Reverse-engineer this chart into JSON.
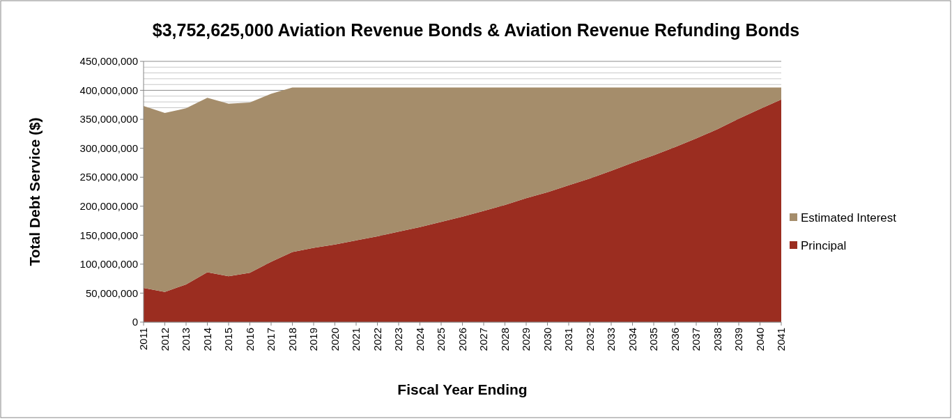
{
  "chart_data": {
    "type": "area",
    "stacked": true,
    "title": "$3,752,625,000 Aviation Revenue Bonds & Aviation Revenue Refunding Bonds",
    "xlabel": "Fiscal Year Ending",
    "ylabel": "Total Debt Service ($)",
    "categories": [
      "2011",
      "2012",
      "2013",
      "2014",
      "2015",
      "2016",
      "2017",
      "2018",
      "2019",
      "2020",
      "2021",
      "2022",
      "2023",
      "2024",
      "2025",
      "2026",
      "2027",
      "2028",
      "2029",
      "2030",
      "2031",
      "2032",
      "2033",
      "2034",
      "2035",
      "2036",
      "2037",
      "2038",
      "2039",
      "2040",
      "2041"
    ],
    "series": [
      {
        "name": "Principal",
        "color": "#9b2d20",
        "values": [
          59000000,
          52000000,
          65000000,
          86000000,
          79000000,
          85000000,
          104000000,
          121000000,
          128000000,
          134000000,
          141000000,
          148000000,
          156000000,
          164000000,
          173000000,
          182000000,
          192000000,
          202000000,
          214000000,
          224000000,
          236000000,
          248000000,
          261000000,
          275000000,
          288000000,
          302000000,
          317000000,
          333000000,
          351000000,
          368000000,
          384000000
        ]
      },
      {
        "name": "Estimated Interest",
        "color": "#a58d6b",
        "values": [
          314000000,
          309000000,
          304000000,
          301000000,
          298000000,
          294000000,
          290000000,
          284000000,
          277000000,
          271000000,
          264000000,
          257000000,
          249000000,
          241000000,
          232000000,
          223000000,
          213000000,
          203000000,
          191000000,
          181000000,
          169000000,
          157000000,
          144000000,
          130000000,
          117000000,
          103000000,
          88000000,
          72000000,
          54000000,
          37000000,
          21000000
        ]
      }
    ],
    "ylim": [
      0,
      450000000
    ],
    "yticks": [
      {
        "value": 0,
        "label": "0"
      },
      {
        "value": 50000000,
        "label": "50,000,000"
      },
      {
        "value": 100000000,
        "label": "100,000,000"
      },
      {
        "value": 150000000,
        "label": "150,000,000"
      },
      {
        "value": 200000000,
        "label": "200,000,000"
      },
      {
        "value": 250000000,
        "label": "250,000,000"
      },
      {
        "value": 300000000,
        "label": "300,000,000"
      },
      {
        "value": 350000000,
        "label": "350,000,000"
      },
      {
        "value": 370000000,
        "label": null
      },
      {
        "value": 380000000,
        "label": null
      },
      {
        "value": 390000000,
        "label": null
      },
      {
        "value": 400000000,
        "label": "400,000,000"
      },
      {
        "value": 410000000,
        "label": null
      },
      {
        "value": 420000000,
        "label": null
      },
      {
        "value": 430000000,
        "label": null
      },
      {
        "value": 440000000,
        "label": null
      },
      {
        "value": 450000000,
        "label": "450,000,000"
      }
    ],
    "grid": true,
    "legend": "right"
  }
}
